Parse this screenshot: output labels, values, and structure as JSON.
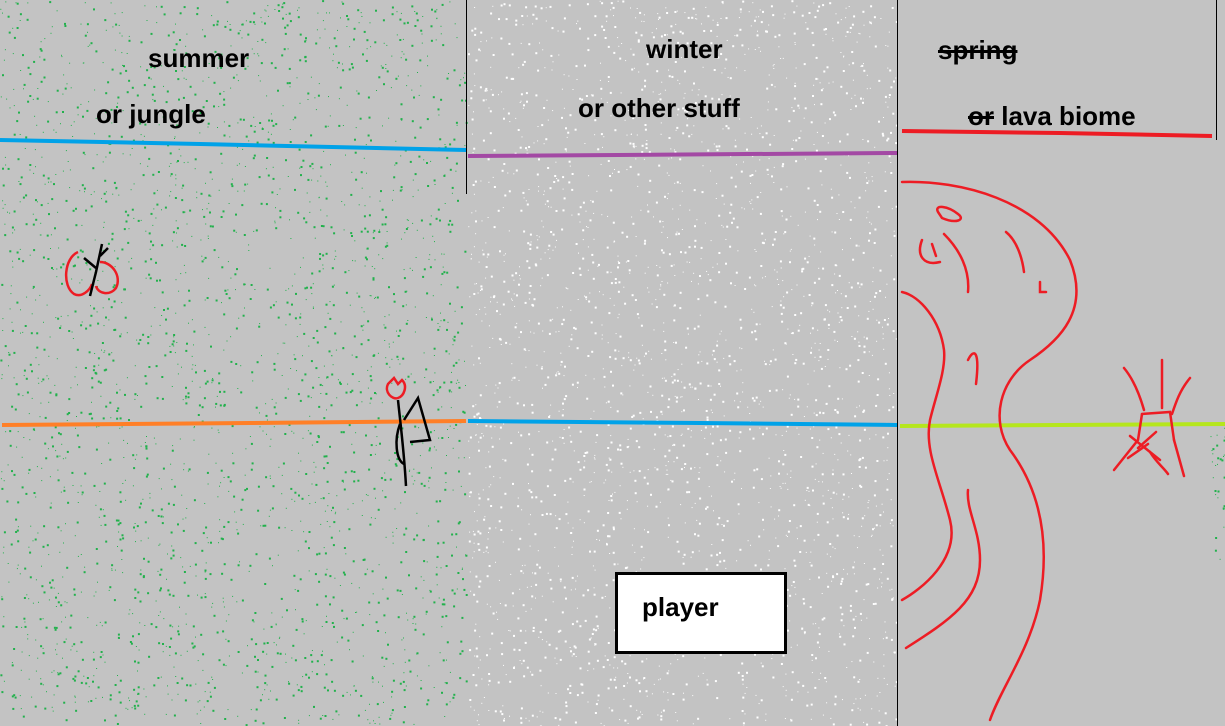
{
  "biomes": {
    "summer": {
      "title": "summer",
      "subtitle": "or jungle",
      "speckle_color": "#22b14c"
    },
    "winter": {
      "title": "winter",
      "subtitle": "or other stuff",
      "speckle_color": "#ffffff"
    },
    "lava": {
      "title_struck": "spring",
      "subtitle_struck_word": "or",
      "subtitle": "lava biome",
      "speckle_color": "#ed1c24"
    }
  },
  "player": {
    "label": "player"
  },
  "colors": {
    "background": "#c3c3c3",
    "blue_line": "#00a2e8",
    "purple_line": "#a349a4",
    "red_line": "#ed1c24",
    "orange_line": "#ff7f27",
    "lime_line": "#b5e61d",
    "green_speckle": "#22b14c",
    "white_speckle": "#ffffff",
    "lava_stroke": "#ed1c24"
  }
}
